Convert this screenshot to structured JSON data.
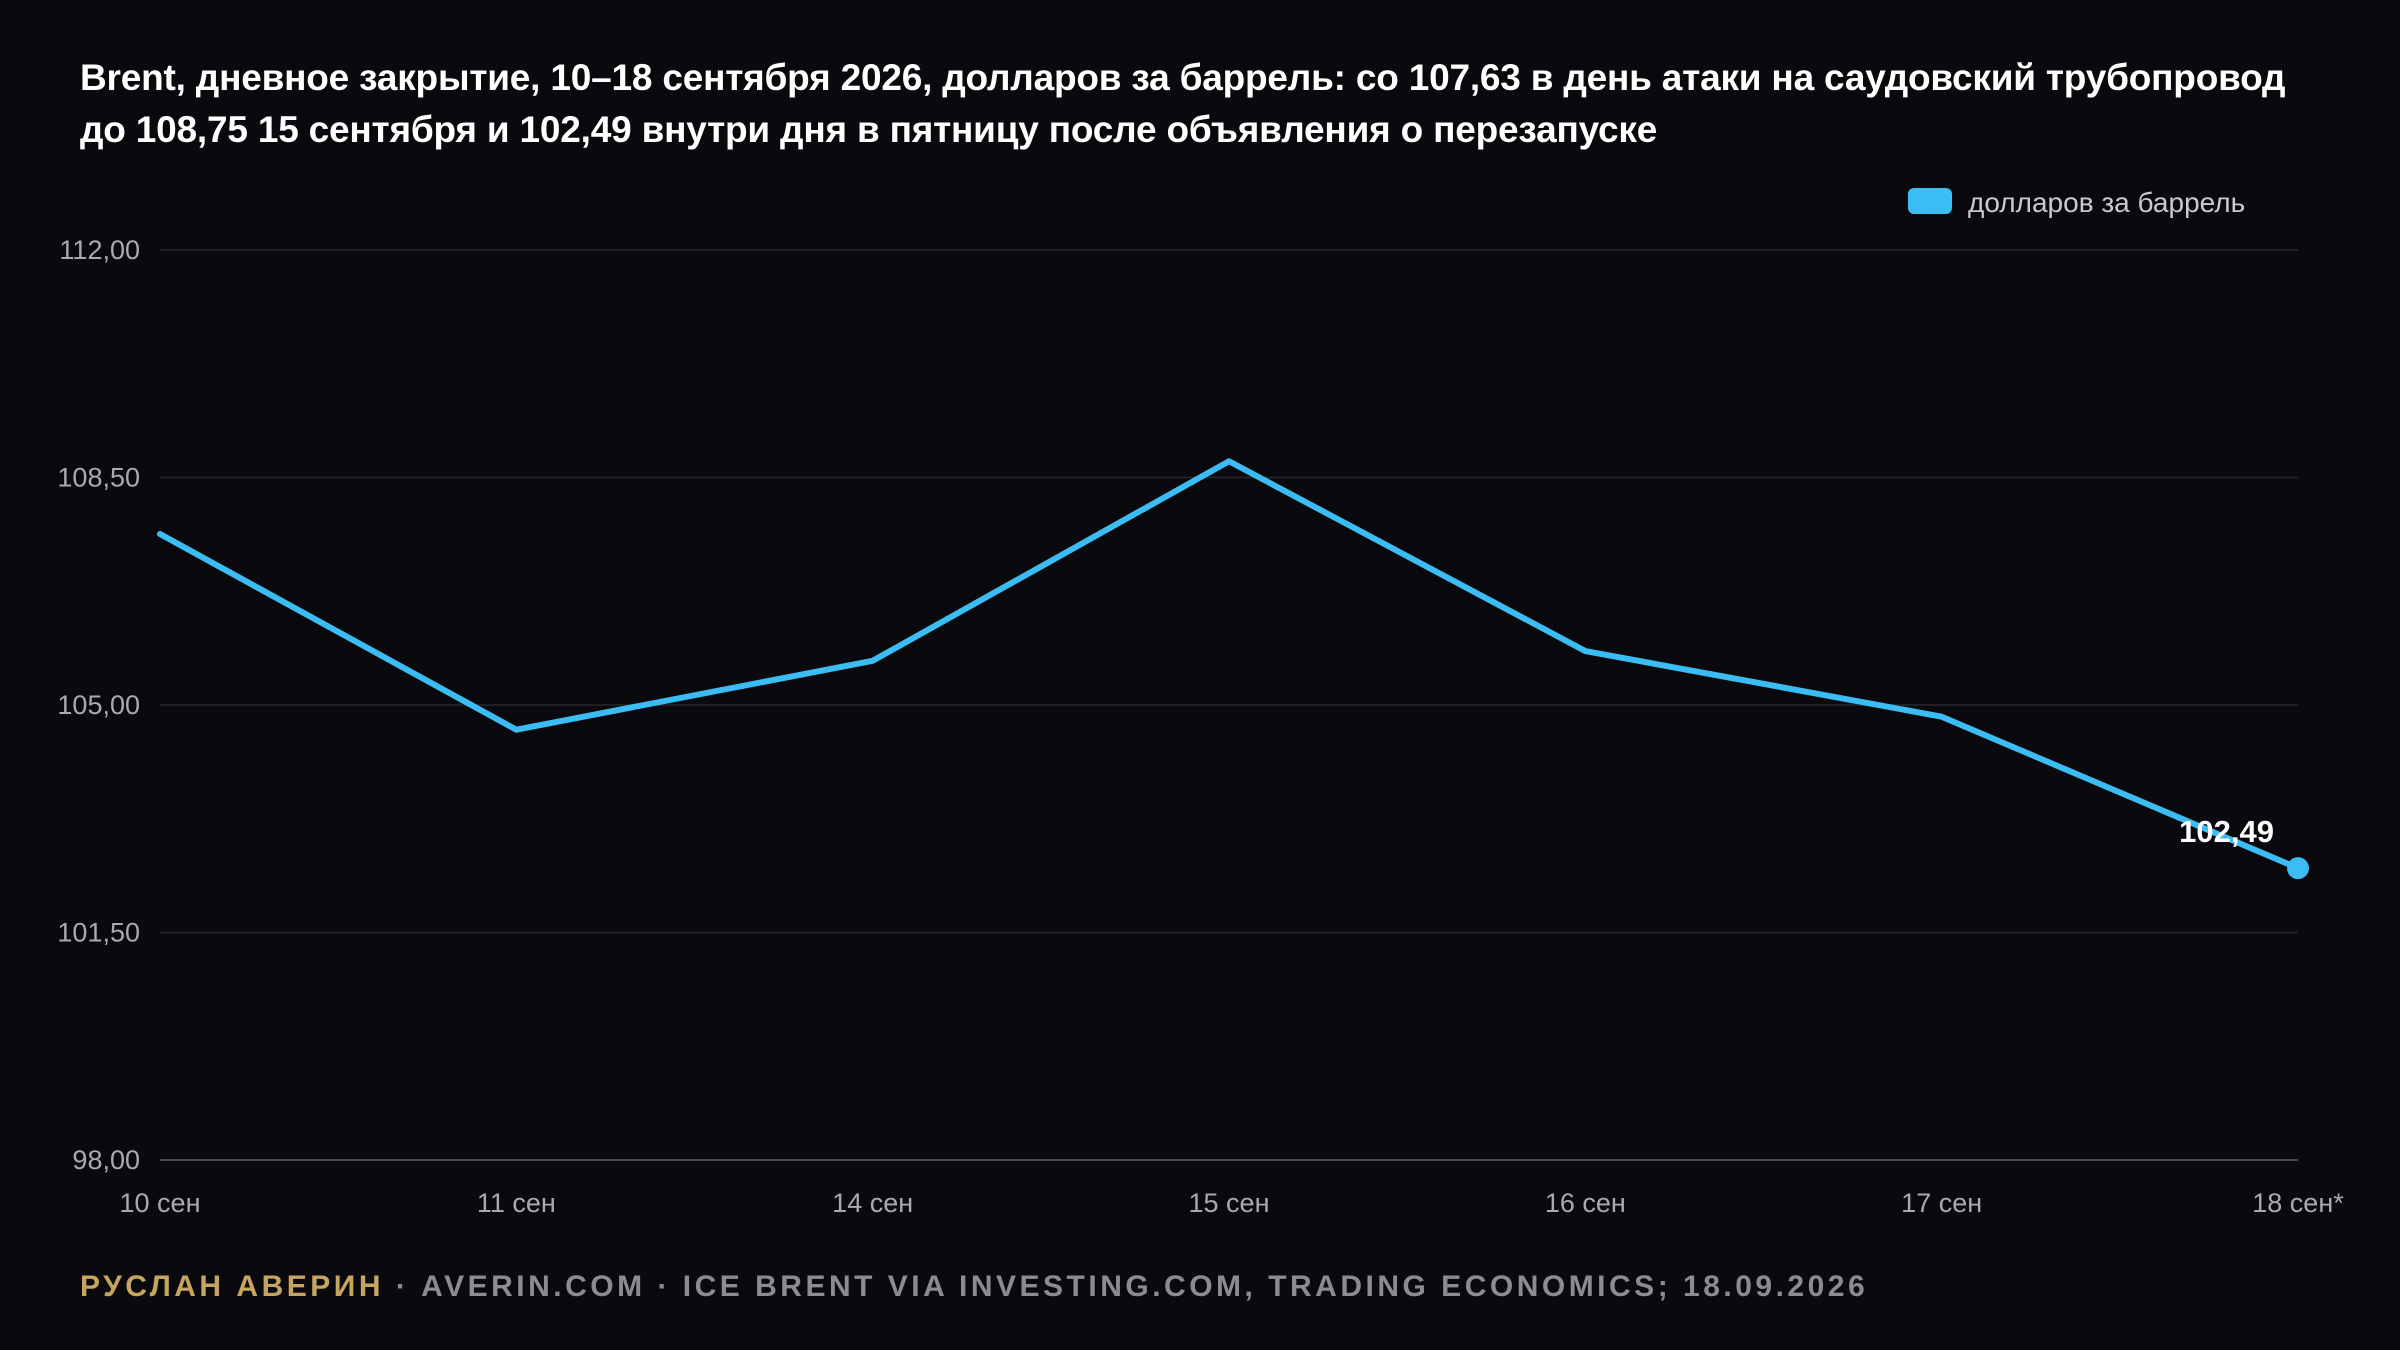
{
  "chart_data": {
    "type": "line",
    "title": "Brent, дневное закрытие, 10–18 сентября 2026, долларов за баррель: со 107,63 в день атаки на саудовский трубопровод до 108,75 15 сентября и 102,49 внутри дня в пятницу после объявления о перезапуске",
    "categories": [
      "10 сен",
      "11 сен",
      "14 сен",
      "15 сен",
      "16 сен",
      "17 сен",
      "18 сен*"
    ],
    "series": [
      {
        "name": "долларов за баррель",
        "values": [
          107.63,
          104.62,
          105.68,
          108.75,
          105.83,
          104.82,
          102.49
        ],
        "color": "#3bbcf2"
      }
    ],
    "ylim": [
      98,
      112
    ],
    "yticks": [
      "98,00",
      "101,50",
      "105,00",
      "108,50",
      "112,00"
    ],
    "ytick_values": [
      98,
      101.5,
      105,
      108.5,
      112
    ],
    "data_labels": [
      {
        "index": 6,
        "text": "102,49"
      }
    ],
    "legend_position": "top-right",
    "grid": true
  },
  "footer": {
    "author": "РУСЛАН АВЕРИН",
    "rest": " · AVERIN.COM · ICE BRENT VIA INVESTING.COM, TRADING ECONOMICS; 18.09.2026"
  }
}
